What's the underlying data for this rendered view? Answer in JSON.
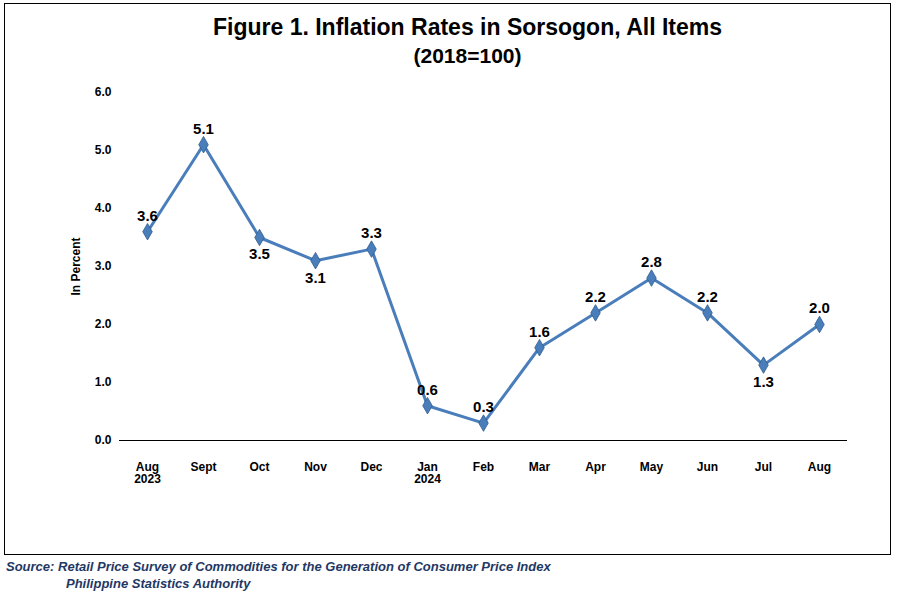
{
  "chart_data": {
    "type": "line",
    "title": "Figure 1. Inflation Rates in Sorsogon, All Items",
    "subtitle": "(2018=100)",
    "y_label": "In Percent",
    "source": [
      "Source: Retail Price Survey of Commodities for the Generation of Consumer Price Index",
      "Philippine Statistics Authority"
    ],
    "categories": [
      "Aug 2023",
      "Sept",
      "Oct",
      "Nov",
      "Dec",
      "Jan 2024",
      "Feb",
      "Mar",
      "Apr",
      "May",
      "Jun",
      "Jul",
      "Aug"
    ],
    "values": [
      3.6,
      5.1,
      3.5,
      3.1,
      3.3,
      0.6,
      0.3,
      1.6,
      2.2,
      2.8,
      2.2,
      1.3,
      2.0
    ],
    "value_labels": [
      "3.6",
      "5.1",
      "3.5",
      "3.1",
      "3.3",
      "0.6",
      "0.3",
      "1.6",
      "2.2",
      "2.8",
      "2.2",
      "1.3",
      "2.0"
    ],
    "color": "#4a7ebb",
    "marker": "diamond",
    "line_style": "solid",
    "data_labels": true,
    "grid": false,
    "ylim": [
      0,
      6
    ],
    "yticks": [
      {
        "value": 0,
        "label": "0.0"
      },
      {
        "value": 1,
        "label": "1.0"
      },
      {
        "value": 2,
        "label": "2.0"
      },
      {
        "value": 3,
        "label": "3.0"
      },
      {
        "value": 4,
        "label": "4.0"
      },
      {
        "value": 5,
        "label": "5.0"
      },
      {
        "value": 6,
        "label": "6.0"
      }
    ]
  }
}
